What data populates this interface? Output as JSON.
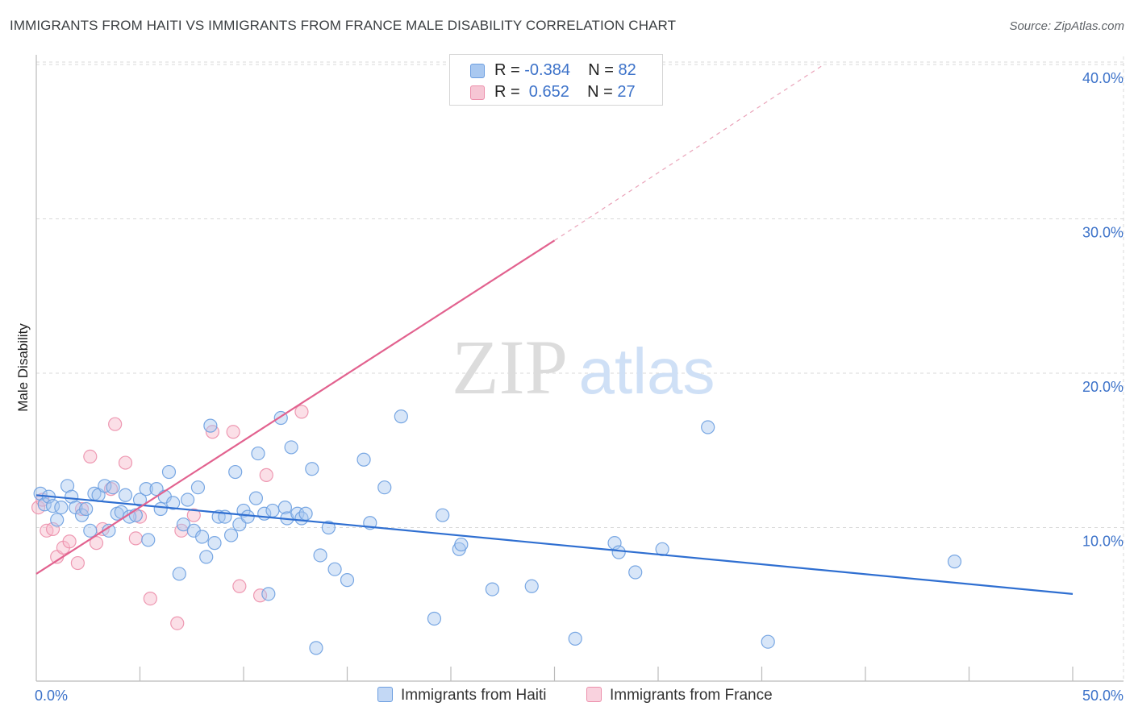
{
  "title": "IMMIGRANTS FROM HAITI VS IMMIGRANTS FROM FRANCE MALE DISABILITY CORRELATION CHART",
  "source": "Source: ZipAtlas.com",
  "watermark": {
    "zip": "ZIP",
    "atlas": "atlas"
  },
  "legend": {
    "haiti": {
      "r_label": "R = ",
      "r_value": "-0.384",
      "n_label": "N = ",
      "n_value": "82"
    },
    "france": {
      "r_label": "R = ",
      "r_value": " 0.652",
      "n_label": "N = ",
      "n_value": "27"
    }
  },
  "bottom_legend": {
    "haiti_label": "Immigrants from Haiti",
    "france_label": "Immigrants from France"
  },
  "colors": {
    "haiti_fill": "#a9c8f0",
    "haiti_stroke": "#6c9ee0",
    "haiti_line": "#2f6fd1",
    "france_fill": "#f6b8ca",
    "france_stroke": "#ec8fab",
    "france_line": "#e2628f",
    "grid": "#d9d9d9",
    "tick_label": "#3c72c9"
  },
  "chart_data": {
    "type": "scatter",
    "title": "IMMIGRANTS FROM HAITI VS IMMIGRANTS FROM FRANCE MALE DISABILITY CORRELATION CHART",
    "xlabel": "",
    "ylabel": "Male Disability",
    "xlim": [
      0,
      50
    ],
    "ylim": [
      0,
      40
    ],
    "x_tick_labels": [
      "0.0%",
      "50.0%"
    ],
    "y_ticks": [
      10,
      20,
      30,
      40
    ],
    "y_tick_labels": [
      "10.0%",
      "20.0%",
      "30.0%",
      "40.0%"
    ],
    "x_minor_ticks": [
      5,
      10,
      15,
      20,
      25,
      30,
      35,
      40,
      45,
      50
    ],
    "grid": true,
    "series": [
      {
        "name": "Immigrants from Haiti",
        "R": -0.384,
        "N": 82,
        "trend": {
          "x0": 0,
          "y0": 12.1,
          "x1": 50,
          "y1": 5.7
        },
        "points": [
          [
            0.2,
            12.2
          ],
          [
            0.4,
            11.5
          ],
          [
            0.6,
            12.0
          ],
          [
            0.8,
            11.4
          ],
          [
            1.0,
            10.5
          ],
          [
            1.2,
            11.3
          ],
          [
            1.5,
            12.7
          ],
          [
            1.7,
            12.0
          ],
          [
            1.9,
            11.3
          ],
          [
            2.2,
            10.8
          ],
          [
            2.4,
            11.2
          ],
          [
            2.6,
            9.8
          ],
          [
            2.8,
            12.2
          ],
          [
            3.0,
            12.1
          ],
          [
            3.3,
            12.7
          ],
          [
            3.5,
            9.8
          ],
          [
            3.7,
            12.6
          ],
          [
            3.9,
            10.9
          ],
          [
            4.1,
            11.0
          ],
          [
            4.3,
            12.1
          ],
          [
            4.5,
            10.7
          ],
          [
            4.8,
            10.8
          ],
          [
            5.0,
            11.8
          ],
          [
            5.3,
            12.5
          ],
          [
            5.4,
            9.2
          ],
          [
            5.8,
            12.5
          ],
          [
            6.0,
            11.2
          ],
          [
            6.2,
            12.0
          ],
          [
            6.4,
            13.6
          ],
          [
            6.6,
            11.6
          ],
          [
            6.9,
            7.0
          ],
          [
            7.1,
            10.2
          ],
          [
            7.3,
            11.8
          ],
          [
            7.6,
            9.8
          ],
          [
            7.8,
            12.6
          ],
          [
            8.0,
            9.4
          ],
          [
            8.2,
            8.1
          ],
          [
            8.4,
            16.6
          ],
          [
            8.6,
            9.0
          ],
          [
            8.8,
            10.7
          ],
          [
            9.1,
            10.7
          ],
          [
            9.4,
            9.5
          ],
          [
            9.6,
            13.6
          ],
          [
            9.8,
            10.2
          ],
          [
            10.0,
            11.1
          ],
          [
            10.2,
            10.7
          ],
          [
            10.6,
            11.9
          ],
          [
            10.7,
            14.8
          ],
          [
            11.0,
            10.9
          ],
          [
            11.2,
            5.7
          ],
          [
            11.4,
            11.1
          ],
          [
            11.8,
            17.1
          ],
          [
            12.0,
            11.3
          ],
          [
            12.1,
            10.6
          ],
          [
            12.3,
            15.2
          ],
          [
            12.6,
            10.9
          ],
          [
            12.8,
            10.6
          ],
          [
            13.0,
            10.9
          ],
          [
            13.3,
            13.8
          ],
          [
            13.5,
            2.2
          ],
          [
            13.7,
            8.2
          ],
          [
            14.1,
            10.0
          ],
          [
            14.4,
            7.3
          ],
          [
            15.0,
            6.6
          ],
          [
            15.8,
            14.4
          ],
          [
            16.1,
            10.3
          ],
          [
            16.8,
            12.6
          ],
          [
            17.6,
            17.2
          ],
          [
            19.2,
            4.1
          ],
          [
            19.6,
            10.8
          ],
          [
            20.4,
            8.6
          ],
          [
            20.5,
            8.9
          ],
          [
            22.0,
            6.0
          ],
          [
            23.9,
            6.2
          ],
          [
            26.0,
            2.8
          ],
          [
            27.9,
            9.0
          ],
          [
            28.1,
            8.4
          ],
          [
            28.9,
            7.1
          ],
          [
            30.2,
            8.6
          ],
          [
            32.4,
            16.5
          ],
          [
            35.3,
            2.6
          ],
          [
            44.3,
            7.8
          ]
        ]
      },
      {
        "name": "Immigrants from France",
        "R": 0.652,
        "N": 27,
        "trend": {
          "x0": 0,
          "y0": 7.0,
          "x1": 25,
          "y1": 28.6,
          "dash_x1": 38,
          "dash_y1": 40
        },
        "points": [
          [
            0.1,
            11.3
          ],
          [
            0.3,
            11.8
          ],
          [
            0.5,
            9.8
          ],
          [
            0.8,
            9.9
          ],
          [
            1.0,
            8.1
          ],
          [
            1.3,
            8.7
          ],
          [
            1.6,
            9.1
          ],
          [
            2.0,
            7.7
          ],
          [
            2.2,
            11.2
          ],
          [
            2.6,
            14.6
          ],
          [
            2.9,
            9.0
          ],
          [
            3.2,
            9.9
          ],
          [
            3.6,
            12.5
          ],
          [
            3.8,
            16.7
          ],
          [
            4.3,
            14.2
          ],
          [
            4.8,
            9.3
          ],
          [
            5.0,
            10.7
          ],
          [
            5.5,
            5.4
          ],
          [
            6.8,
            3.8
          ],
          [
            7.0,
            9.8
          ],
          [
            7.6,
            10.8
          ],
          [
            8.5,
            16.2
          ],
          [
            9.5,
            16.2
          ],
          [
            9.8,
            6.2
          ],
          [
            10.8,
            5.6
          ],
          [
            11.1,
            13.4
          ],
          [
            12.8,
            17.5
          ]
        ]
      }
    ]
  }
}
